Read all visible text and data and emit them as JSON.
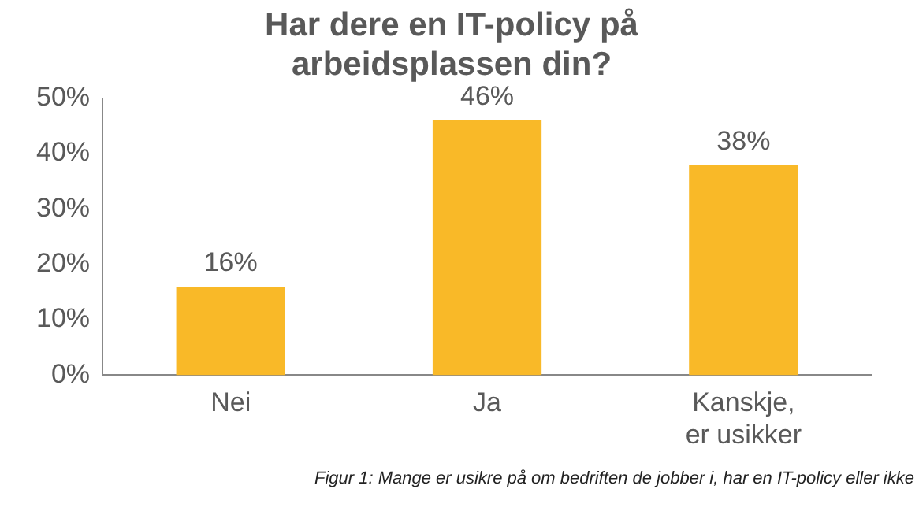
{
  "chart_data": {
    "type": "bar",
    "title": "Har dere en IT-policy på arbeidsplassen din?",
    "categories": [
      "Nei",
      "Ja",
      "Kanskje, er usikker"
    ],
    "values": [
      16,
      46,
      38
    ],
    "color": "#f9b928",
    "value_labels": [
      "16%",
      "46%",
      "38%"
    ],
    "ylim": [
      0,
      50
    ],
    "yticks": [
      {
        "value": 0,
        "label": "0%"
      },
      {
        "value": 10,
        "label": "10%"
      },
      {
        "value": 20,
        "label": "20%"
      },
      {
        "value": 30,
        "label": "30%"
      },
      {
        "value": 40,
        "label": "40%"
      },
      {
        "value": 50,
        "label": "50%"
      }
    ],
    "grid": false,
    "legend": false,
    "annotations": [
      "Figur 1: Mange er usikre på om bedriften de jobber i, har en IT-policy eller ikke"
    ]
  }
}
